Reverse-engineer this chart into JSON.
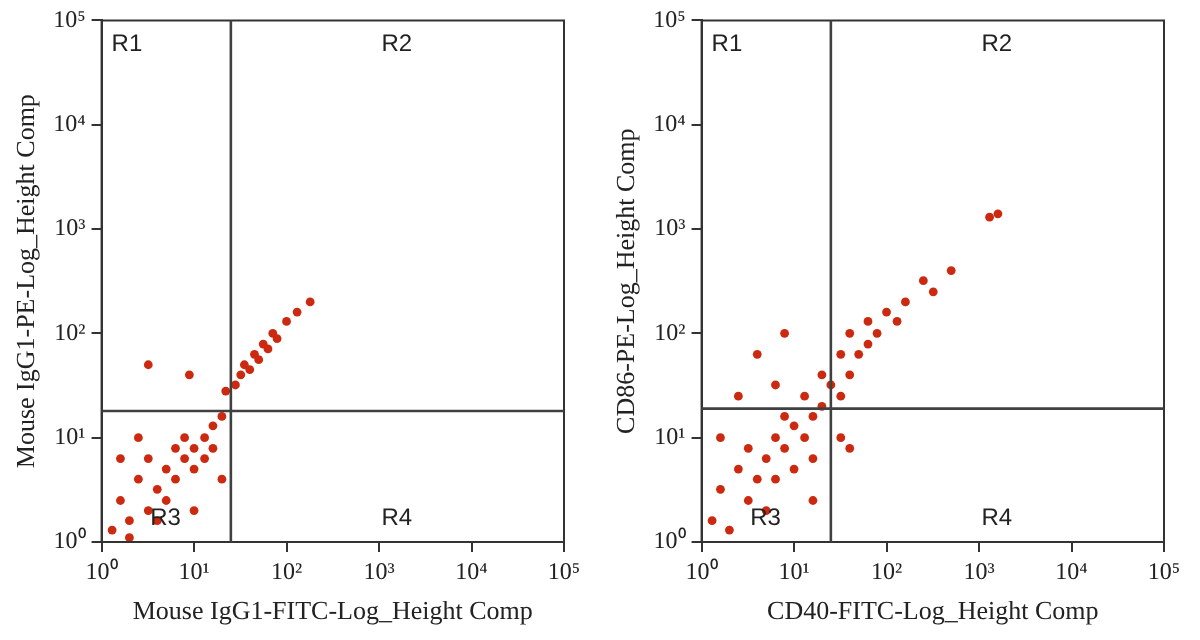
{
  "chart_data": [
    {
      "type": "scatter",
      "xlabel": "Mouse IgG1-FITC-Log_Height Comp",
      "ylabel": "Mouse IgG1-PE-Log_Height Comp",
      "log": "xy",
      "grid": false,
      "legend": false,
      "marker": "circle",
      "xlim": [
        1,
        100000
      ],
      "ylim": [
        1,
        100000
      ],
      "xticks": [
        {
          "value": 1,
          "label": "10⁰"
        },
        {
          "value": 10,
          "label": "10¹"
        },
        {
          "value": 100,
          "label": "10²"
        },
        {
          "value": 1000,
          "label": "10³"
        },
        {
          "value": 10000,
          "label": "10⁴"
        },
        {
          "value": 100000,
          "label": "10⁵"
        }
      ],
      "yticks": [
        {
          "value": 1,
          "label": "10⁰"
        },
        {
          "value": 10,
          "label": "10¹"
        },
        {
          "value": 100,
          "label": "10²"
        },
        {
          "value": 1000,
          "label": "10³"
        },
        {
          "value": 10000,
          "label": "10⁴"
        },
        {
          "value": 100000,
          "label": "10⁵"
        }
      ],
      "ref_lines": [
        {
          "axis": "x",
          "value": 25,
          "color": "#404040"
        },
        {
          "axis": "y",
          "value": 18,
          "color": "#404040"
        }
      ],
      "annotations": [
        "R1",
        "R2",
        "R3",
        "R4"
      ],
      "series": [
        {
          "color": "#cc2a10",
          "x": [
            1.3,
            1.6,
            2,
            2.5,
            3.2,
            3.2,
            4,
            5,
            5,
            6.3,
            6.3,
            7.9,
            7.9,
            10,
            10,
            13,
            13,
            16,
            16,
            20,
            4,
            2,
            10,
            1.6,
            3.2,
            8.9,
            22,
            28,
            32,
            35,
            40,
            45,
            50,
            56,
            63,
            71,
            79,
            100,
            130,
            180,
            20,
            2.5
          ],
          "values": [
            1.3,
            2.5,
            1.6,
            4,
            2,
            6.3,
            3.2,
            5,
            2.5,
            7.9,
            4,
            6.3,
            10,
            5,
            7.9,
            10,
            6.3,
            13,
            7.9,
            16,
            1.6,
            1.1,
            2,
            6.3,
            50,
            40,
            28,
            32,
            40,
            50,
            45,
            63,
            56,
            79,
            71,
            100,
            89,
            130,
            160,
            200,
            4,
            10
          ]
        }
      ]
    },
    {
      "type": "scatter",
      "xlabel": "CD40-FITC-Log_Height Comp",
      "ylabel": "CD86-PE-Log_Height Comp",
      "log": "xy",
      "grid": false,
      "legend": false,
      "marker": "circle",
      "xlim": [
        1,
        100000
      ],
      "ylim": [
        1,
        100000
      ],
      "xticks": [
        {
          "value": 1,
          "label": "10⁰"
        },
        {
          "value": 10,
          "label": "10¹"
        },
        {
          "value": 100,
          "label": "10²"
        },
        {
          "value": 1000,
          "label": "10³"
        },
        {
          "value": 10000,
          "label": "10⁴"
        },
        {
          "value": 100000,
          "label": "10⁵"
        }
      ],
      "yticks": [
        {
          "value": 1,
          "label": "10⁰"
        },
        {
          "value": 10,
          "label": "10¹"
        },
        {
          "value": 100,
          "label": "10²"
        },
        {
          "value": 1000,
          "label": "10³"
        },
        {
          "value": 10000,
          "label": "10⁴"
        },
        {
          "value": 100000,
          "label": "10⁵"
        }
      ],
      "ref_lines": [
        {
          "axis": "x",
          "value": 25,
          "color": "#404040"
        },
        {
          "axis": "y",
          "value": 19,
          "color": "#404040"
        }
      ],
      "annotations": [
        "R1",
        "R2",
        "R3",
        "R4"
      ],
      "series": [
        {
          "color": "#cc2a10",
          "x": [
            1.3,
            1.6,
            2,
            2.5,
            3.2,
            3.2,
            4,
            5,
            5,
            6.3,
            6.3,
            7.9,
            7.9,
            10,
            10,
            13,
            13,
            16,
            16,
            20,
            20,
            2.5,
            4,
            6.3,
            7.9,
            25,
            32,
            32,
            40,
            40,
            50,
            63,
            63,
            79,
            100,
            130,
            160,
            250,
            500,
            1300,
            1600,
            32,
            40,
            1.6,
            16,
            320
          ],
          "values": [
            1.6,
            3.2,
            1.3,
            5,
            2.5,
            7.9,
            4,
            6.3,
            2,
            10,
            4,
            7.9,
            16,
            5,
            13,
            10,
            25,
            16,
            6.3,
            20,
            40,
            25,
            63,
            32,
            100,
            32,
            25,
            63,
            40,
            100,
            63,
            79,
            130,
            100,
            160,
            130,
            200,
            320,
            400,
            1300,
            1400,
            10,
            7.9,
            10,
            2.5,
            250
          ]
        }
      ]
    }
  ]
}
